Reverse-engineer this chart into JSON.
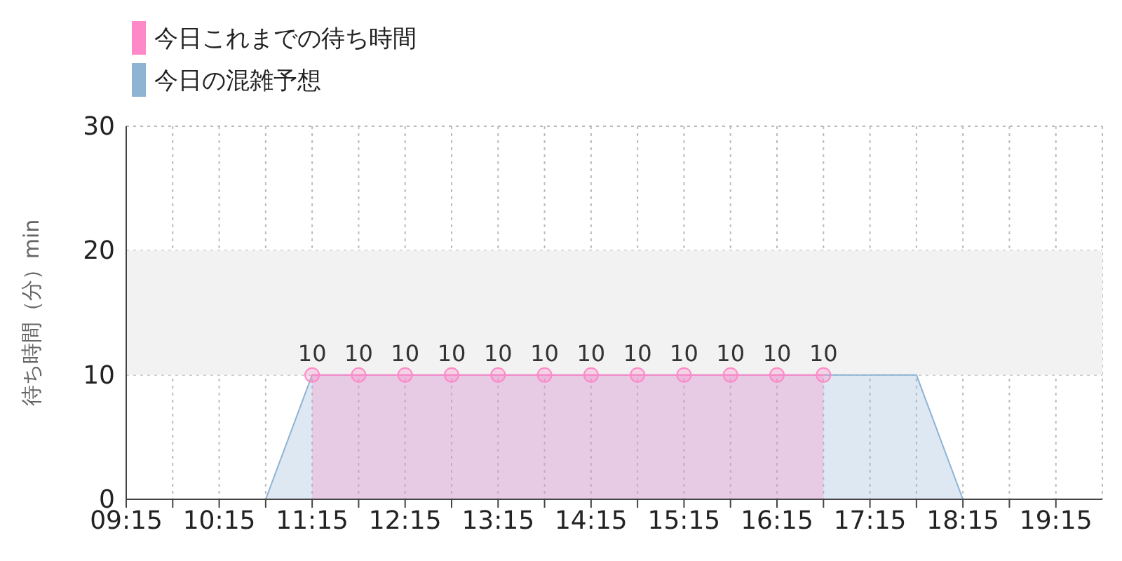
{
  "chart_data": {
    "type": "area",
    "ylabel": "待ち時間（分）min",
    "legend": "top left",
    "grid": true,
    "marker": "circle",
    "xlim": [
      9.25,
      19.75
    ],
    "xticks": [
      {
        "value": 9.25,
        "label": "09:15"
      },
      {
        "value": 9.75,
        "label": null
      },
      {
        "value": 10.25,
        "label": "10:15"
      },
      {
        "value": 10.75,
        "label": null
      },
      {
        "value": 11.25,
        "label": "11:15"
      },
      {
        "value": 11.75,
        "label": null
      },
      {
        "value": 12.25,
        "label": "12:15"
      },
      {
        "value": 12.75,
        "label": null
      },
      {
        "value": 13.25,
        "label": "13:15"
      },
      {
        "value": 13.75,
        "label": null
      },
      {
        "value": 14.25,
        "label": "14:15"
      },
      {
        "value": 14.75,
        "label": null
      },
      {
        "value": 15.25,
        "label": "15:15"
      },
      {
        "value": 15.75,
        "label": null
      },
      {
        "value": 16.25,
        "label": "16:15"
      },
      {
        "value": 16.75,
        "label": null
      },
      {
        "value": 17.25,
        "label": "17:15"
      },
      {
        "value": 17.75,
        "label": null
      },
      {
        "value": 18.25,
        "label": "18:15"
      },
      {
        "value": 18.75,
        "label": null
      },
      {
        "value": 19.25,
        "label": "19:15"
      }
    ],
    "ylim": [
      0,
      30
    ],
    "yticks": [
      0,
      10,
      20,
      30
    ],
    "bands": [
      {
        "axis": "y",
        "from": 10,
        "to": 20,
        "color": "#f2f2f2"
      }
    ],
    "series": [
      {
        "name": "今日の混雑予想",
        "color": "#8fb3d3",
        "marker": "none",
        "x": [
          9.25,
          10.5,
          10.75,
          11.25,
          17.5,
          17.75,
          18.25,
          19.75
        ],
        "values": [
          0,
          0,
          0,
          10,
          10,
          10,
          0,
          0
        ]
      },
      {
        "name": "今日これまでの待ち時間",
        "color": "#ff88c8",
        "x": [
          11.25,
          11.75,
          12.25,
          12.75,
          13.25,
          13.75,
          14.25,
          14.75,
          15.25,
          15.75,
          16.25,
          16.75
        ],
        "values": [
          10,
          10,
          10,
          10,
          10,
          10,
          10,
          10,
          10,
          10,
          10,
          10
        ],
        "value_labels": [
          "10",
          "10",
          "10",
          "10",
          "10",
          "10",
          "10",
          "10",
          "10",
          "10",
          "10",
          "10"
        ]
      }
    ]
  }
}
